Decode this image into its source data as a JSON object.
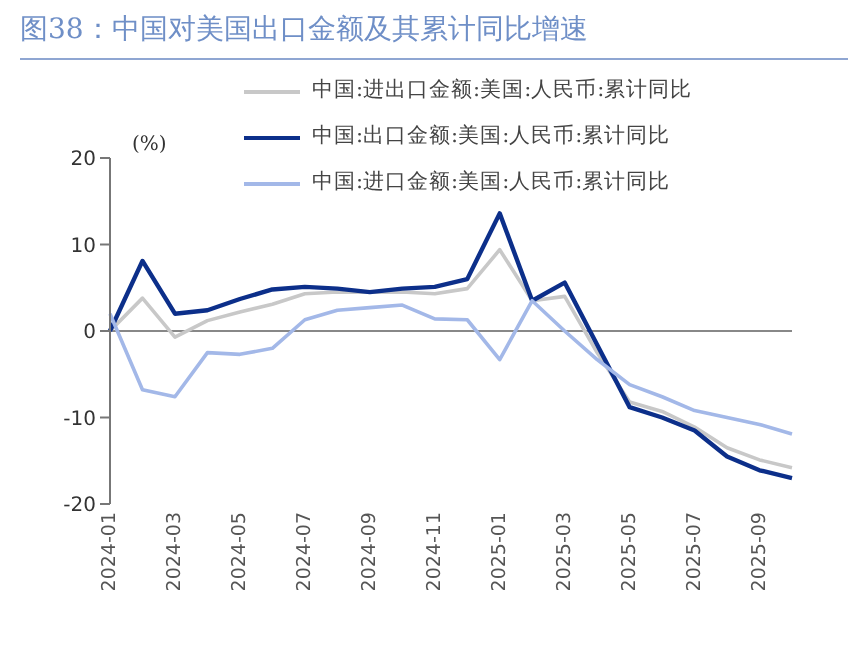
{
  "chart_data": {
    "type": "line",
    "title": "图38：中国对美国出口金额及其累计同比增速",
    "ylabel": "(%)",
    "categories": [
      "2024-01",
      null,
      "2024-03",
      null,
      "2024-05",
      null,
      "2024-07",
      null,
      "2024-09",
      null,
      "2024-11",
      null,
      "2025-01",
      null,
      "2025-03",
      null,
      "2025-05",
      null,
      "2025-07",
      null,
      "2025-09",
      null
    ],
    "series": [
      {
        "name": "中国:进出口金额:美国:人民币:累计同比",
        "color": "#c8c8c8",
        "values": [
          0,
          3.8,
          -0.7,
          1.2,
          2.2,
          3.1,
          4.3,
          4.5,
          4.5,
          4.5,
          4.3,
          4.9,
          9.4,
          3.5,
          4.0,
          -2.5,
          -8.2,
          -9.3,
          -11.1,
          -13.5,
          -14.9,
          -15.8
        ]
      },
      {
        "name": "中国:出口金额:美国:人民币:累计同比",
        "color": "#0c2f8a",
        "values": [
          0,
          8.1,
          2.0,
          2.4,
          3.7,
          4.8,
          5.1,
          4.9,
          4.5,
          4.9,
          5.1,
          6.0,
          13.6,
          3.5,
          5.6,
          -1.6,
          -8.8,
          -10.0,
          -11.5,
          -14.5,
          -16.1,
          -17.0
        ]
      },
      {
        "name": "中国:进口金额:美国:人民币:累计同比",
        "color": "#a3b8e8",
        "values": [
          2.0,
          -6.8,
          -7.6,
          -2.5,
          -2.7,
          -2.0,
          1.3,
          2.4,
          2.7,
          3.0,
          1.4,
          1.3,
          -3.3,
          3.5,
          0,
          -3.3,
          -6.2,
          -7.6,
          -9.2,
          -10.0,
          -10.8,
          -11.9
        ]
      }
    ],
    "ylim": [
      -20,
      20
    ],
    "yticks": [
      -20,
      -10,
      0,
      10,
      20
    ],
    "grid": false,
    "ref_lines": [
      {
        "axis": "y",
        "value": 0,
        "color": "#888888"
      }
    ],
    "legend": "top",
    "marker": "none",
    "line_style": "solid"
  }
}
